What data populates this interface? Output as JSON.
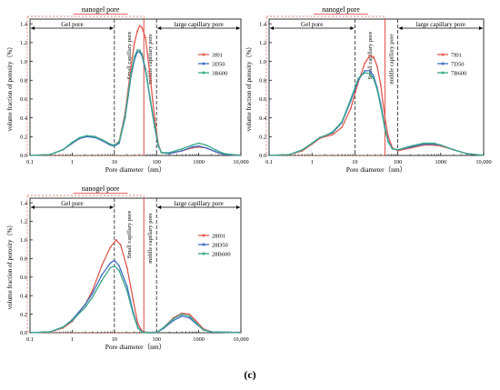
{
  "figure": {
    "label": "(c)"
  },
  "chart_data": [
    {
      "type": "line",
      "ylabel": "volume fraction of porosity（%）",
      "xlabel": "Pore diameter（nm）",
      "x_scale": "log",
      "xlim": [
        0.1,
        10000
      ],
      "ylim": [
        0,
        1.45
      ],
      "x_ticks": [
        "0.1",
        "1",
        "10",
        "100",
        "1000",
        "10,000"
      ],
      "y_ticks": [
        "0.0",
        "0.2",
        "0.4",
        "0.6",
        "0.8",
        "1.0",
        "1.2",
        "1.4"
      ],
      "legend_position": "right",
      "regions": {
        "nanogel": "nanogel pore",
        "gel": "Gel pore",
        "small": "Small capillary pore",
        "middle": "middle capillary pore",
        "large": "large capillary pore"
      },
      "boundaries_nm": [
        10,
        50,
        100
      ],
      "series": [
        {
          "name": "3f01",
          "color": "#e05a4e",
          "points": [
            [
              0.1,
              0
            ],
            [
              0.3,
              0.01
            ],
            [
              0.6,
              0.06
            ],
            [
              1,
              0.13
            ],
            [
              1.5,
              0.18
            ],
            [
              2.2,
              0.21
            ],
            [
              3.5,
              0.2
            ],
            [
              5,
              0.17
            ],
            [
              8,
              0.12
            ],
            [
              10,
              0.11
            ],
            [
              13,
              0.15
            ],
            [
              18,
              0.45
            ],
            [
              25,
              0.95
            ],
            [
              30,
              1.2
            ],
            [
              35,
              1.32
            ],
            [
              40,
              1.38
            ],
            [
              45,
              1.36
            ],
            [
              55,
              1.25
            ],
            [
              70,
              0.85
            ],
            [
              90,
              0.4
            ],
            [
              110,
              0.12
            ],
            [
              130,
              0.03
            ],
            [
              200,
              0.02
            ],
            [
              400,
              0.05
            ],
            [
              700,
              0.08
            ],
            [
              1000,
              0.09
            ],
            [
              1500,
              0.08
            ],
            [
              2500,
              0.04
            ],
            [
              4000,
              0.01
            ],
            [
              10000,
              0
            ]
          ]
        },
        {
          "name": "3D50",
          "color": "#3e6fc1",
          "points": [
            [
              0.1,
              0
            ],
            [
              0.3,
              0.01
            ],
            [
              0.6,
              0.06
            ],
            [
              1,
              0.13
            ],
            [
              1.5,
              0.18
            ],
            [
              2.2,
              0.2
            ],
            [
              3.5,
              0.19
            ],
            [
              5,
              0.16
            ],
            [
              8,
              0.11
            ],
            [
              10,
              0.1
            ],
            [
              13,
              0.13
            ],
            [
              18,
              0.4
            ],
            [
              25,
              0.85
            ],
            [
              30,
              1.02
            ],
            [
              35,
              1.1
            ],
            [
              40,
              1.1
            ],
            [
              45,
              1.06
            ],
            [
              55,
              0.9
            ],
            [
              70,
              0.6
            ],
            [
              90,
              0.3
            ],
            [
              110,
              0.1
            ],
            [
              130,
              0.03
            ],
            [
              200,
              0.02
            ],
            [
              400,
              0.05
            ],
            [
              700,
              0.09
            ],
            [
              1000,
              0.1
            ],
            [
              1500,
              0.08
            ],
            [
              2500,
              0.04
            ],
            [
              4000,
              0.01
            ],
            [
              10000,
              0
            ]
          ]
        },
        {
          "name": "3B600",
          "color": "#3aa88a",
          "points": [
            [
              0.1,
              0
            ],
            [
              0.3,
              0.01
            ],
            [
              0.6,
              0.06
            ],
            [
              1,
              0.14
            ],
            [
              1.5,
              0.19
            ],
            [
              2.2,
              0.21
            ],
            [
              3.5,
              0.2
            ],
            [
              5,
              0.17
            ],
            [
              8,
              0.12
            ],
            [
              10,
              0.11
            ],
            [
              13,
              0.14
            ],
            [
              18,
              0.42
            ],
            [
              25,
              0.88
            ],
            [
              30,
              1.05
            ],
            [
              35,
              1.12
            ],
            [
              40,
              1.12
            ],
            [
              45,
              1.08
            ],
            [
              55,
              0.92
            ],
            [
              70,
              0.62
            ],
            [
              90,
              0.32
            ],
            [
              110,
              0.11
            ],
            [
              130,
              0.03
            ],
            [
              200,
              0.03
            ],
            [
              400,
              0.07
            ],
            [
              700,
              0.11
            ],
            [
              1000,
              0.13
            ],
            [
              1500,
              0.11
            ],
            [
              2500,
              0.06
            ],
            [
              4000,
              0.02
            ],
            [
              10000,
              0
            ]
          ]
        }
      ]
    },
    {
      "type": "line",
      "ylabel": "volume fraction of porosity（%）",
      "xlabel": "Pore diameter（nm）",
      "x_scale": "log",
      "xlim": [
        0.1,
        10000
      ],
      "ylim": [
        0,
        1.45
      ],
      "x_ticks": [
        "0.1",
        "1",
        "10",
        "100",
        "1000",
        "10,000"
      ],
      "y_ticks": [
        "0.0",
        "0.2",
        "0.4",
        "0.6",
        "0.8",
        "1.0",
        "1.2",
        "1.4"
      ],
      "legend_position": "right",
      "regions": {
        "nanogel": "nanogel pore",
        "gel": "Gel pore",
        "small": "Small capillary pore",
        "middle": "middle capillary pore",
        "large": "large capillary pore"
      },
      "boundaries_nm": [
        10,
        50,
        100
      ],
      "series": [
        {
          "name": "7f01",
          "color": "#e05a4e",
          "points": [
            [
              0.1,
              0
            ],
            [
              0.3,
              0.01
            ],
            [
              0.6,
              0.05
            ],
            [
              1,
              0.12
            ],
            [
              1.5,
              0.18
            ],
            [
              2,
              0.2
            ],
            [
              3,
              0.22
            ],
            [
              5,
              0.3
            ],
            [
              8,
              0.5
            ],
            [
              12,
              0.78
            ],
            [
              17,
              0.98
            ],
            [
              22,
              1.06
            ],
            [
              27,
              1.05
            ],
            [
              33,
              0.95
            ],
            [
              40,
              0.75
            ],
            [
              50,
              0.4
            ],
            [
              60,
              0.2
            ],
            [
              75,
              0.08
            ],
            [
              100,
              0.05
            ],
            [
              200,
              0.08
            ],
            [
              400,
              0.11
            ],
            [
              700,
              0.11
            ],
            [
              1000,
              0.1
            ],
            [
              2000,
              0.06
            ],
            [
              4000,
              0.02
            ],
            [
              10000,
              0
            ]
          ]
        },
        {
          "name": "7D50",
          "color": "#3e6fc1",
          "points": [
            [
              0.1,
              0
            ],
            [
              0.3,
              0.01
            ],
            [
              0.6,
              0.06
            ],
            [
              1,
              0.13
            ],
            [
              1.5,
              0.19
            ],
            [
              2,
              0.21
            ],
            [
              3,
              0.24
            ],
            [
              5,
              0.35
            ],
            [
              8,
              0.58
            ],
            [
              12,
              0.8
            ],
            [
              17,
              0.9
            ],
            [
              22,
              0.9
            ],
            [
              27,
              0.85
            ],
            [
              33,
              0.72
            ],
            [
              40,
              0.55
            ],
            [
              50,
              0.3
            ],
            [
              60,
              0.15
            ],
            [
              75,
              0.07
            ],
            [
              100,
              0.06
            ],
            [
              200,
              0.09
            ],
            [
              400,
              0.12
            ],
            [
              700,
              0.12
            ],
            [
              1000,
              0.11
            ],
            [
              2000,
              0.06
            ],
            [
              4000,
              0.02
            ],
            [
              10000,
              0
            ]
          ]
        },
        {
          "name": "7B600",
          "color": "#3aa88a",
          "points": [
            [
              0.1,
              0
            ],
            [
              0.3,
              0.01
            ],
            [
              0.6,
              0.06
            ],
            [
              1,
              0.13
            ],
            [
              1.5,
              0.19
            ],
            [
              2,
              0.21
            ],
            [
              3,
              0.25
            ],
            [
              5,
              0.36
            ],
            [
              8,
              0.6
            ],
            [
              12,
              0.82
            ],
            [
              17,
              0.88
            ],
            [
              22,
              0.87
            ],
            [
              27,
              0.82
            ],
            [
              33,
              0.7
            ],
            [
              40,
              0.52
            ],
            [
              50,
              0.28
            ],
            [
              60,
              0.14
            ],
            [
              75,
              0.07
            ],
            [
              100,
              0.06
            ],
            [
              200,
              0.1
            ],
            [
              400,
              0.13
            ],
            [
              700,
              0.13
            ],
            [
              1000,
              0.11
            ],
            [
              2000,
              0.06
            ],
            [
              4000,
              0.02
            ],
            [
              10000,
              0
            ]
          ]
        }
      ]
    },
    {
      "type": "line",
      "ylabel": "volume fraction of porosity（%）",
      "xlabel": "Pore diameter（nm）",
      "x_scale": "log",
      "xlim": [
        0.1,
        10000
      ],
      "ylim": [
        0,
        1.45
      ],
      "x_ticks": [
        "0.1",
        "1",
        "10",
        "100",
        "1000",
        "10,000"
      ],
      "y_ticks": [
        "0.0",
        "0.2",
        "0.4",
        "0.6",
        "0.8",
        "1.0",
        "1.2",
        "1.4"
      ],
      "legend_position": "right",
      "regions": {
        "nanogel": "nanogel pore",
        "gel": "Gel pore",
        "small": "Small capillary pore",
        "middle": "middle capillary pore",
        "large": "large capillary pore"
      },
      "boundaries_nm": [
        10,
        50,
        100
      ],
      "series": [
        {
          "name": "28f01",
          "color": "#e05a4e",
          "points": [
            [
              0.1,
              0
            ],
            [
              0.3,
              0.01
            ],
            [
              0.6,
              0.05
            ],
            [
              1,
              0.12
            ],
            [
              2,
              0.3
            ],
            [
              3,
              0.45
            ],
            [
              5,
              0.72
            ],
            [
              8,
              0.92
            ],
            [
              11,
              1.0
            ],
            [
              14,
              0.95
            ],
            [
              20,
              0.7
            ],
            [
              28,
              0.35
            ],
            [
              36,
              0.1
            ],
            [
              45,
              0.02
            ],
            [
              60,
              0
            ],
            [
              100,
              0
            ],
            [
              150,
              0.06
            ],
            [
              250,
              0.16
            ],
            [
              400,
              0.21
            ],
            [
              600,
              0.2
            ],
            [
              900,
              0.12
            ],
            [
              1300,
              0.04
            ],
            [
              2000,
              0.01
            ],
            [
              10000,
              0
            ]
          ]
        },
        {
          "name": "28D50",
          "color": "#3e6fc1",
          "points": [
            [
              0.1,
              0
            ],
            [
              0.3,
              0.01
            ],
            [
              0.6,
              0.06
            ],
            [
              1,
              0.14
            ],
            [
              2,
              0.3
            ],
            [
              3,
              0.42
            ],
            [
              5,
              0.62
            ],
            [
              8,
              0.75
            ],
            [
              10,
              0.78
            ],
            [
              13,
              0.72
            ],
            [
              20,
              0.5
            ],
            [
              28,
              0.22
            ],
            [
              36,
              0.06
            ],
            [
              45,
              0.01
            ],
            [
              60,
              0
            ],
            [
              100,
              0
            ],
            [
              150,
              0.05
            ],
            [
              250,
              0.13
            ],
            [
              400,
              0.18
            ],
            [
              600,
              0.16
            ],
            [
              900,
              0.09
            ],
            [
              1300,
              0.03
            ],
            [
              2000,
              0.01
            ],
            [
              10000,
              0
            ]
          ]
        },
        {
          "name": "28B600",
          "color": "#3aa88a",
          "points": [
            [
              0.1,
              0
            ],
            [
              0.3,
              0.01
            ],
            [
              0.6,
              0.06
            ],
            [
              1,
              0.13
            ],
            [
              2,
              0.27
            ],
            [
              3,
              0.38
            ],
            [
              5,
              0.56
            ],
            [
              8,
              0.7
            ],
            [
              10,
              0.72
            ],
            [
              13,
              0.67
            ],
            [
              20,
              0.45
            ],
            [
              28,
              0.2
            ],
            [
              36,
              0.05
            ],
            [
              45,
              0.01
            ],
            [
              60,
              0
            ],
            [
              100,
              0
            ],
            [
              150,
              0.06
            ],
            [
              250,
              0.15
            ],
            [
              400,
              0.2
            ],
            [
              600,
              0.18
            ],
            [
              900,
              0.1
            ],
            [
              1300,
              0.03
            ],
            [
              2000,
              0.01
            ],
            [
              10000,
              0
            ]
          ]
        }
      ]
    }
  ]
}
